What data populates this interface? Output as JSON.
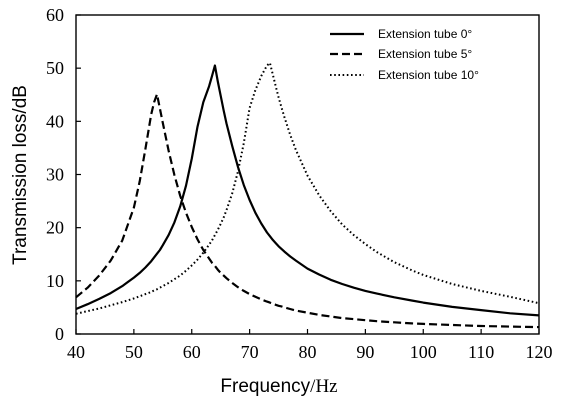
{
  "chart_data": {
    "type": "line",
    "xlabel": {
      "main": "Frequency",
      "unit": "/Hz"
    },
    "ylabel": "Transmission loss/dB",
    "xlim": [
      40,
      120
    ],
    "ylim": [
      0,
      60
    ],
    "xticks": [
      "40",
      "50",
      "60",
      "70",
      "80",
      "90",
      "100",
      "110",
      "120"
    ],
    "yticks": [
      "0",
      "10",
      "20",
      "30",
      "40",
      "50",
      "60"
    ],
    "grid": false,
    "legend_position": "top-right",
    "x": [
      40,
      42,
      44,
      46,
      48,
      50,
      51,
      52,
      53,
      53.5,
      54,
      54.5,
      55,
      56,
      57,
      58,
      59,
      60,
      61,
      62,
      63,
      63.5,
      64,
      64.5,
      65,
      65.5,
      66,
      67,
      68,
      69,
      70,
      71,
      72,
      73,
      73.5,
      74,
      74.5,
      75,
      75.5,
      76,
      77,
      78,
      80,
      82,
      84,
      86,
      88,
      90,
      92,
      95,
      98,
      100,
      105,
      110,
      115,
      120
    ],
    "series": [
      {
        "name": "Extension tube 0°",
        "dash": "solid",
        "values": [
          4.7,
          5.6,
          6.6,
          7.7,
          9.0,
          10.6,
          11.5,
          12.5,
          13.7,
          14.4,
          15.1,
          15.8,
          16.7,
          18.6,
          21.0,
          24.0,
          27.9,
          33.0,
          39.0,
          43.6,
          46.6,
          48.5,
          50.5,
          47.5,
          44.8,
          42.1,
          39.6,
          35.3,
          31.4,
          28.0,
          25.2,
          22.8,
          20.8,
          19.1,
          18.4,
          17.7,
          17.1,
          16.5,
          16.0,
          15.5,
          14.6,
          13.8,
          12.3,
          11.2,
          10.2,
          9.4,
          8.7,
          8.1,
          7.6,
          6.9,
          6.3,
          5.9,
          5.1,
          4.5,
          3.9,
          3.5
        ]
      },
      {
        "name": "Extension tube 5°",
        "dash": "dashed",
        "values": [
          6.9,
          8.7,
          11.0,
          13.8,
          17.6,
          23.8,
          28.7,
          34.8,
          41.3,
          43.6,
          45.1,
          42.4,
          39.7,
          34.5,
          29.9,
          26.0,
          22.8,
          20.1,
          17.8,
          15.8,
          14.2,
          13.4,
          12.8,
          12.1,
          11.5,
          11.0,
          10.5,
          9.6,
          8.8,
          8.1,
          7.5,
          7.0,
          6.5,
          6.1,
          5.9,
          5.7,
          5.5,
          5.3,
          5.2,
          5.0,
          4.7,
          4.4,
          4.0,
          3.6,
          3.3,
          3.0,
          2.8,
          2.6,
          2.4,
          2.2,
          2.0,
          1.9,
          1.7,
          1.5,
          1.4,
          1.3
        ]
      },
      {
        "name": "Extension tube 10°",
        "dash": "dotted",
        "values": [
          3.8,
          4.3,
          4.8,
          5.4,
          6.0,
          6.7,
          7.1,
          7.5,
          7.9,
          8.2,
          8.4,
          8.7,
          9.0,
          9.6,
          10.3,
          11.0,
          11.9,
          12.9,
          14.0,
          15.3,
          16.8,
          17.6,
          18.6,
          19.6,
          20.7,
          21.9,
          23.3,
          26.5,
          30.6,
          35.9,
          42.5,
          45.9,
          48.5,
          50.5,
          51.0,
          48.8,
          46.6,
          44.5,
          42.6,
          40.8,
          37.5,
          34.6,
          29.8,
          26.1,
          23.1,
          20.6,
          18.6,
          16.9,
          15.4,
          13.5,
          12.0,
          11.1,
          9.4,
          8.1,
          7.0,
          5.8
        ]
      }
    ]
  }
}
